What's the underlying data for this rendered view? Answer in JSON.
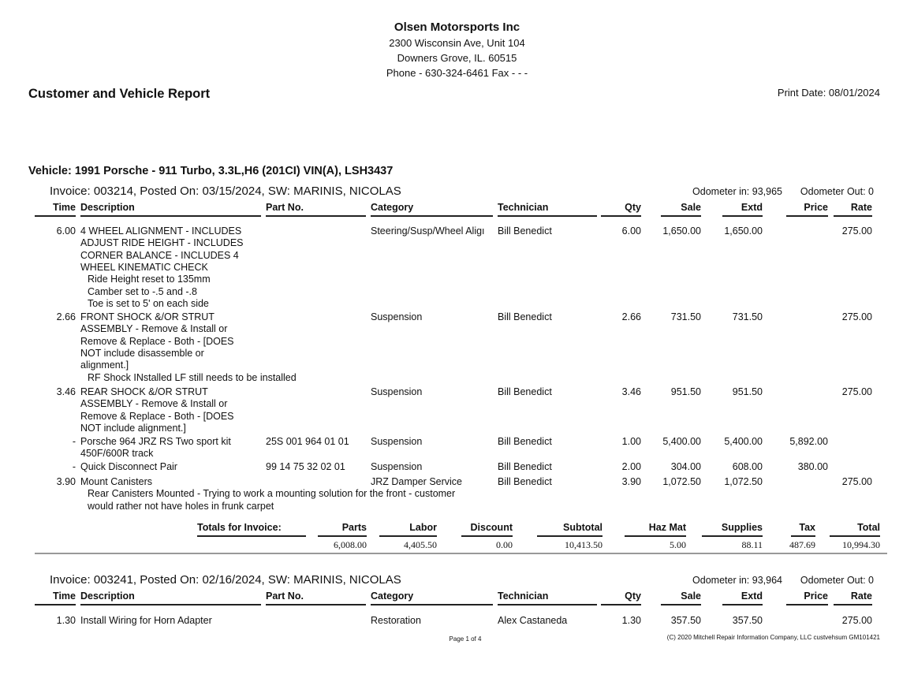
{
  "company": {
    "name": "Olsen Motorsports Inc",
    "address1": "2300 Wisconsin Ave, Unit 104",
    "address2": "Downers Grove, IL.  60515",
    "phone": "Phone - 630-324-6461   Fax - -  -"
  },
  "report_title": "Customer and Vehicle Report",
  "print_date": "Print Date: 08/01/2024",
  "vehicle": "Vehicle: 1991 Porsche - 911 Turbo, 3.3L,H6 (201CI) VIN(A), LSH3437",
  "columns": [
    "Time",
    "Description",
    "Part No.",
    "Category",
    "Technician",
    "Qty",
    "Sale",
    "Extd",
    "Price",
    "Rate"
  ],
  "invoices": [
    {
      "header": "Invoice: 003214,   Posted On:  03/15/2024,   SW: MARINIS, NICOLAS",
      "odometer_in": "Odometer in: 93,965",
      "odometer_out": "Odometer Out: 0",
      "items": [
        {
          "time": "6.00",
          "desc": [
            "4 WHEEL ALIGNMENT - INCLUDES",
            "ADJUST RIDE HEIGHT - INCLUDES",
            "CORNER BALANCE - INCLUDES 4",
            "WHEEL KINEMATIC CHECK"
          ],
          "notes": [
            "Ride Height reset to 135mm",
            "Camber set to -.5 and -.8",
            "Toe is set to 5' on each side"
          ],
          "part": "",
          "category": "Steering/Susp/Wheel Aligı",
          "tech": "Bill Benedict",
          "qty": "6.00",
          "sale": "1,650.00",
          "extd": "1,650.00",
          "price": "",
          "rate": "275.00"
        },
        {
          "time": "2.66",
          "desc": [
            "FRONT SHOCK &/OR STRUT",
            "ASSEMBLY - Remove & Install or",
            "Remove & Replace - Both - [DOES",
            "NOT include disassemble or",
            "alignment.]"
          ],
          "notes": [
            "RF Shock INstalled LF still needs to be installed"
          ],
          "part": "",
          "category": "Suspension",
          "tech": "Bill Benedict",
          "qty": "2.66",
          "sale": "731.50",
          "extd": "731.50",
          "price": "",
          "rate": "275.00"
        },
        {
          "time": "3.46",
          "desc": [
            "REAR SHOCK &/OR STRUT",
            "ASSEMBLY - Remove & Install or",
            "Remove & Replace - Both - [DOES",
            "NOT include alignment.]"
          ],
          "notes": [],
          "part": "",
          "category": "Suspension",
          "tech": "Bill Benedict",
          "qty": "3.46",
          "sale": "951.50",
          "extd": "951.50",
          "price": "",
          "rate": "275.00"
        },
        {
          "time": "-",
          "desc": [
            "Porsche 964 JRZ RS Two sport kit",
            "450F/600R track"
          ],
          "notes": [],
          "part": "25S 001 964 01 01",
          "category": "Suspension",
          "tech": "Bill Benedict",
          "qty": "1.00",
          "sale": "5,400.00",
          "extd": "5,400.00",
          "price": "5,892.00",
          "rate": ""
        },
        {
          "time": "-",
          "desc": [
            "Quick Disconnect Pair"
          ],
          "notes": [],
          "part": "99 14 75 32 02 01",
          "category": "Suspension",
          "tech": "Bill Benedict",
          "qty": "2.00",
          "sale": "304.00",
          "extd": "608.00",
          "price": "380.00",
          "rate": ""
        },
        {
          "time": "3.90",
          "desc": [
            "Mount Canisters"
          ],
          "notes": [
            "Rear Canisters Mounted - Trying to work a mounting solution for the front - customer",
            "would rather not have holes in frunk carpet"
          ],
          "part": "",
          "category": "JRZ Damper Service",
          "tech": "Bill Benedict",
          "qty": "3.90",
          "sale": "1,072.50",
          "extd": "1,072.50",
          "price": "",
          "rate": "275.00"
        }
      ],
      "totals": {
        "label": "Totals for Invoice:",
        "headers": [
          "Parts",
          "Labor",
          "Discount",
          "Subtotal",
          "Haz Mat",
          "Supplies",
          "Tax",
          "Total"
        ],
        "values": [
          "6,008.00",
          "4,405.50",
          "0.00",
          "10,413.50",
          "5.00",
          "88.11",
          "487.69",
          "10,994.30"
        ]
      }
    },
    {
      "header": "Invoice: 003241,   Posted On:  02/16/2024,   SW: MARINIS, NICOLAS",
      "odometer_in": "Odometer in: 93,964",
      "odometer_out": "Odometer Out: 0",
      "items": [
        {
          "time": "1.30",
          "desc": [
            "Install Wiring for Horn Adapter"
          ],
          "notes": [],
          "part": "",
          "category": "Restoration",
          "tech": "Alex Castaneda",
          "qty": "1.30",
          "sale": "357.50",
          "extd": "357.50",
          "price": "",
          "rate": "275.00"
        }
      ]
    }
  ],
  "footer": {
    "page": "Page 1 of 4",
    "copyright": "(C) 2020 Mitchell Repair Information Company, LLC custvehsum  GM101421"
  }
}
